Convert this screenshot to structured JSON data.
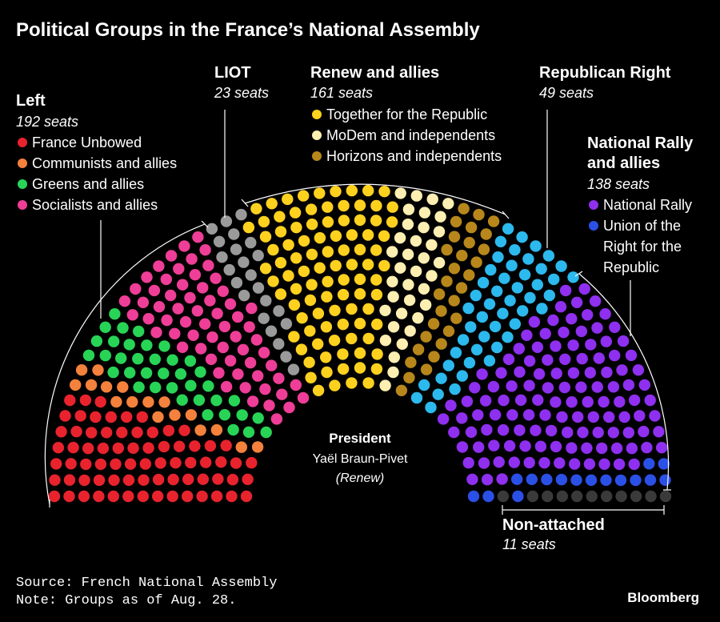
{
  "title": "Political Groups in the France’s National Assembly",
  "source": "Source: French National Assembly",
  "note": "Note: Groups as of Aug. 28.",
  "brand": "Bloomberg",
  "president": {
    "heading": "President",
    "name": "Yaël Braun-Pivet",
    "party": "(Renew)"
  },
  "chart_data": {
    "type": "parliament",
    "title": "Political Groups in the France’s National Assembly",
    "total_seats": 574,
    "groups": [
      {
        "name": "Left",
        "seats_label": "192 seats",
        "seats": 192,
        "members": [
          {
            "name": "France Unbowed",
            "seats": 72,
            "color": "#e8232d"
          },
          {
            "name": "Communists and allies",
            "seats": 17,
            "color": "#f4813c"
          },
          {
            "name": "Greens and allies",
            "seats": 38,
            "color": "#28d456"
          },
          {
            "name": "Socialists and allies",
            "seats": 65,
            "color": "#ef3e97"
          }
        ]
      },
      {
        "name": "LIOT",
        "seats_label": "23 seats",
        "seats": 23,
        "members": [
          {
            "name": "LIOT",
            "seats": 23,
            "color": "#9a9a9a"
          }
        ]
      },
      {
        "name": "Renew and allies",
        "seats_label": "161 seats",
        "seats": 161,
        "members": [
          {
            "name": "Together for the Republic",
            "seats": 95,
            "color": "#ffd11f"
          },
          {
            "name": "MoDem and independents",
            "seats": 36,
            "color": "#fdeeb1"
          },
          {
            "name": "Horizons and independents",
            "seats": 30,
            "color": "#b8871b"
          }
        ]
      },
      {
        "name": "Republican Right",
        "seats_label": "49 seats",
        "seats": 49,
        "members": [
          {
            "name": "Republican Right",
            "seats": 49,
            "color": "#2cb9ee"
          }
        ]
      },
      {
        "name": "National Rally and allies",
        "name_lines": [
          "National Rally",
          "and allies"
        ],
        "seats_label": "138 seats",
        "seats": 138,
        "members": [
          {
            "name": "National Rally",
            "seats": 122,
            "color": "#8f2ff0"
          },
          {
            "name": "Union of the Right for the Republic",
            "name_lines": [
              "Union of the",
              "Right for the",
              "Republic"
            ],
            "seats": 16,
            "color": "#2b50e6"
          }
        ]
      },
      {
        "name": "Non-attached",
        "seats_label": "11 seats",
        "seats": 11,
        "members": [
          {
            "name": "Non-attached",
            "seats": 11,
            "color": "#3a3a3a"
          }
        ]
      }
    ]
  }
}
